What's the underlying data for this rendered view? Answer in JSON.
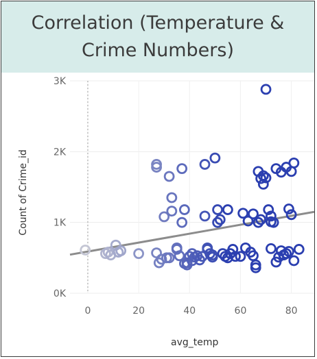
{
  "chart_data": {
    "type": "scatter",
    "title": "Correlation (Temperature & Crime Numbers)",
    "xlabel": "avg_temp",
    "ylabel": "Count of Crime_id",
    "xlim": [
      -7,
      89
    ],
    "ylim": [
      0,
      3000
    ],
    "x_ticks": [
      0,
      20,
      40,
      60,
      80
    ],
    "x_tick_labels": [
      "0",
      "20",
      "40",
      "60",
      "80"
    ],
    "y_ticks": [
      0,
      1000,
      2000,
      3000
    ],
    "y_tick_labels": [
      "0K",
      "1K",
      "2K",
      "3K"
    ],
    "grid": true,
    "legend": "none",
    "trend_line": {
      "x": [
        -7,
        89
      ],
      "y": [
        545,
        1150
      ]
    },
    "reference_line_x": 0,
    "marker_colors": {
      "low_temp": "#c4c6d4",
      "high_temp": "#2b3fb0"
    },
    "trend_color": "#8c8c8c",
    "points": [
      {
        "x": -1,
        "y": 610
      },
      {
        "x": 7,
        "y": 560
      },
      {
        "x": 8,
        "y": 580
      },
      {
        "x": 9,
        "y": 540
      },
      {
        "x": 11,
        "y": 680
      },
      {
        "x": 12,
        "y": 580
      },
      {
        "x": 13,
        "y": 600
      },
      {
        "x": 20,
        "y": 560
      },
      {
        "x": 27,
        "y": 570
      },
      {
        "x": 27,
        "y": 1820
      },
      {
        "x": 27,
        "y": 1780
      },
      {
        "x": 28,
        "y": 430
      },
      {
        "x": 29,
        "y": 480
      },
      {
        "x": 30,
        "y": 1080
      },
      {
        "x": 31,
        "y": 500
      },
      {
        "x": 32,
        "y": 500
      },
      {
        "x": 32,
        "y": 1650
      },
      {
        "x": 33,
        "y": 1160
      },
      {
        "x": 33,
        "y": 1350
      },
      {
        "x": 35,
        "y": 620
      },
      {
        "x": 35,
        "y": 640
      },
      {
        "x": 36,
        "y": 530
      },
      {
        "x": 37,
        "y": 1000
      },
      {
        "x": 37,
        "y": 1760
      },
      {
        "x": 38,
        "y": 1180
      },
      {
        "x": 38,
        "y": 420
      },
      {
        "x": 39,
        "y": 400
      },
      {
        "x": 39,
        "y": 430
      },
      {
        "x": 40,
        "y": 520
      },
      {
        "x": 41,
        "y": 560
      },
      {
        "x": 41,
        "y": 460
      },
      {
        "x": 42,
        "y": 510
      },
      {
        "x": 43,
        "y": 530
      },
      {
        "x": 44,
        "y": 470
      },
      {
        "x": 45,
        "y": 520
      },
      {
        "x": 46,
        "y": 1090
      },
      {
        "x": 46,
        "y": 1820
      },
      {
        "x": 47,
        "y": 640
      },
      {
        "x": 47,
        "y": 620
      },
      {
        "x": 48,
        "y": 560
      },
      {
        "x": 49,
        "y": 510
      },
      {
        "x": 49,
        "y": 540
      },
      {
        "x": 50,
        "y": 1910
      },
      {
        "x": 51,
        "y": 1180
      },
      {
        "x": 51,
        "y": 1000
      },
      {
        "x": 52,
        "y": 1040
      },
      {
        "x": 53,
        "y": 560
      },
      {
        "x": 54,
        "y": 520
      },
      {
        "x": 55,
        "y": 1180
      },
      {
        "x": 55,
        "y": 500
      },
      {
        "x": 56,
        "y": 560
      },
      {
        "x": 57,
        "y": 620
      },
      {
        "x": 58,
        "y": 520
      },
      {
        "x": 60,
        "y": 520
      },
      {
        "x": 61,
        "y": 1130
      },
      {
        "x": 62,
        "y": 640
      },
      {
        "x": 63,
        "y": 1020
      },
      {
        "x": 64,
        "y": 580
      },
      {
        "x": 65,
        "y": 1120
      },
      {
        "x": 65,
        "y": 530
      },
      {
        "x": 66,
        "y": 400
      },
      {
        "x": 66,
        "y": 360
      },
      {
        "x": 67,
        "y": 1000
      },
      {
        "x": 67,
        "y": 1720
      },
      {
        "x": 68,
        "y": 1040
      },
      {
        "x": 68,
        "y": 1620
      },
      {
        "x": 69,
        "y": 1660
      },
      {
        "x": 69,
        "y": 1540
      },
      {
        "x": 70,
        "y": 1630
      },
      {
        "x": 70,
        "y": 2880
      },
      {
        "x": 71,
        "y": 1180
      },
      {
        "x": 72,
        "y": 1090
      },
      {
        "x": 72,
        "y": 1010
      },
      {
        "x": 72,
        "y": 630
      },
      {
        "x": 73,
        "y": 1000
      },
      {
        "x": 74,
        "y": 1760
      },
      {
        "x": 74,
        "y": 440
      },
      {
        "x": 75,
        "y": 510
      },
      {
        "x": 76,
        "y": 1710
      },
      {
        "x": 76,
        "y": 600
      },
      {
        "x": 77,
        "y": 540
      },
      {
        "x": 78,
        "y": 1780
      },
      {
        "x": 78,
        "y": 560
      },
      {
        "x": 79,
        "y": 1190
      },
      {
        "x": 79,
        "y": 590
      },
      {
        "x": 80,
        "y": 1110
      },
      {
        "x": 80,
        "y": 1720
      },
      {
        "x": 81,
        "y": 1840
      },
      {
        "x": 81,
        "y": 460
      },
      {
        "x": 83,
        "y": 620
      }
    ]
  }
}
